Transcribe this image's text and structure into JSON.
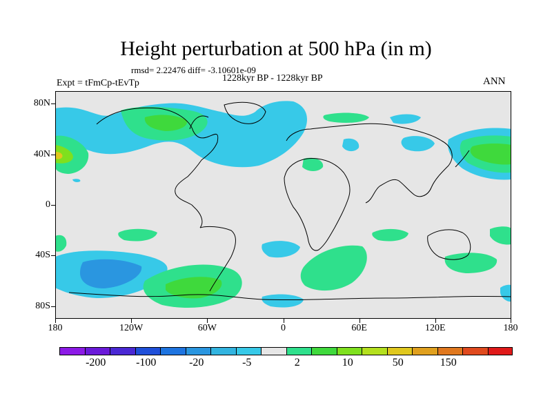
{
  "title": "Height perturbation at 500 hPa (in m)",
  "stats": "rmsd= 2.22476 diff= -3.10601e-09",
  "period": "1228kyr BP - 1228kyr BP",
  "experiment": "Expt = tFmCp-tEvTp",
  "season": "ANN",
  "map": {
    "projection": "cylindrical equidistant",
    "lat_range": [
      -90,
      90
    ],
    "lon_range": [
      -180,
      180
    ],
    "background_color": "#e6e6e6",
    "y_axis": {
      "ticks": [
        80,
        40,
        0,
        -40,
        -80
      ],
      "labels": [
        "80N",
        "40N",
        "0",
        "40S",
        "80S"
      ]
    },
    "x_axis": {
      "ticks": [
        -180,
        -120,
        -60,
        0,
        60,
        120,
        180
      ],
      "labels": [
        "180",
        "120W",
        "60W",
        "0",
        "60E",
        "120E",
        "180"
      ]
    }
  },
  "colorbar": {
    "colors": [
      "#8c1ae6",
      "#6a1ad9",
      "#4a28d4",
      "#1f4fd9",
      "#1e74e0",
      "#2a96e0",
      "#32b4e0",
      "#37c9e8",
      "#e6e6e6",
      "#2fe08c",
      "#3fd93c",
      "#7fe01e",
      "#b4e01e",
      "#e0c81e",
      "#e0a01e",
      "#e0781e",
      "#e04a1e",
      "#e01a1a"
    ],
    "labels": [
      {
        "text": "-200",
        "boundary": 1
      },
      {
        "text": "-100",
        "boundary": 3
      },
      {
        "text": "-20",
        "boundary": 5
      },
      {
        "text": "-5",
        "boundary": 7
      },
      {
        "text": "2",
        "boundary": 9
      },
      {
        "text": "10",
        "boundary": 11
      },
      {
        "text": "50",
        "boundary": 13
      },
      {
        "text": "150",
        "boundary": 15
      }
    ]
  }
}
